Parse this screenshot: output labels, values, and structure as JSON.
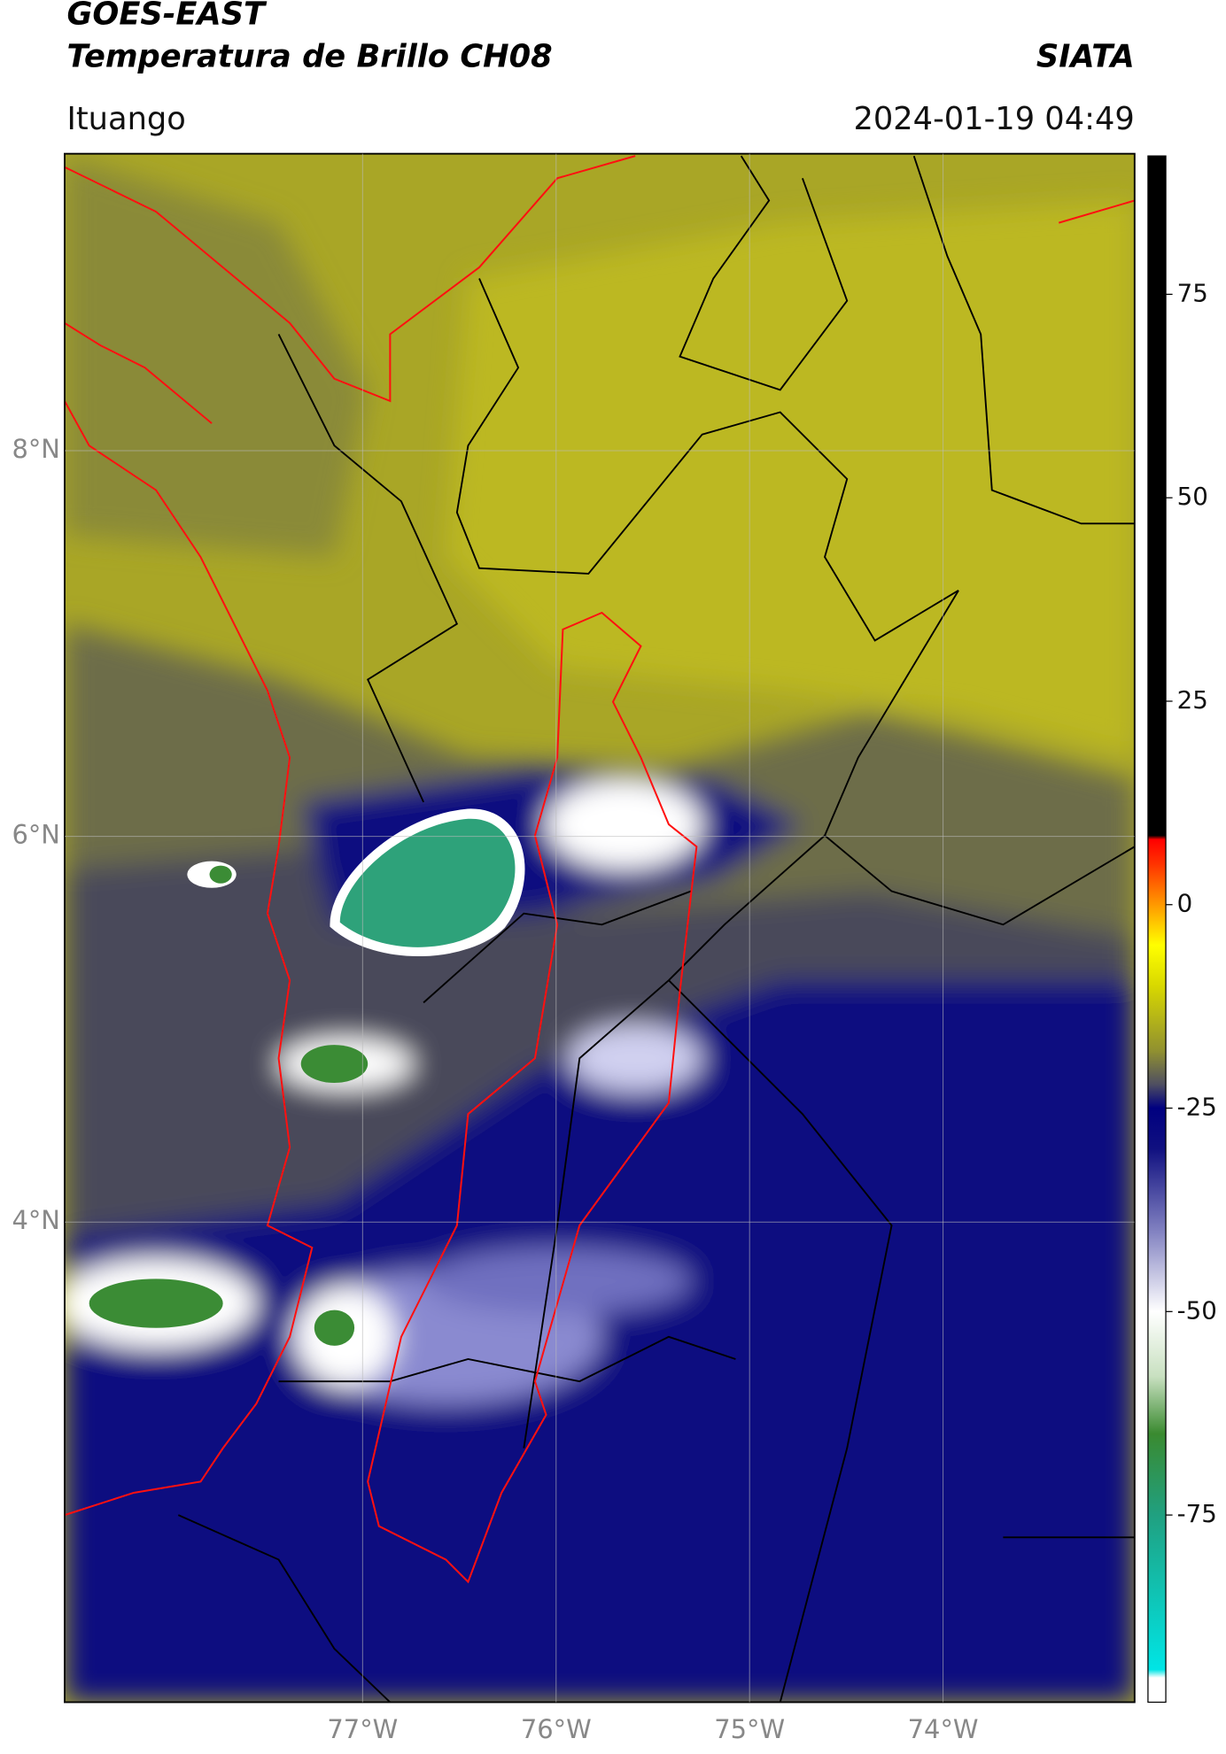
{
  "header": {
    "title": "GOES-EAST",
    "subtitle": "Temperatura de Brillo CH08",
    "source": "SIATA",
    "location": "Ituango",
    "datetime": "2024-01-19 04:49"
  },
  "map": {
    "xlim": [
      -78.54,
      -73.01
    ],
    "ylim": [
      1.51,
      9.54
    ],
    "xticks": [
      {
        "value": -77,
        "label": "77°W"
      },
      {
        "value": -76,
        "label": "76°W"
      },
      {
        "value": -75,
        "label": "75°W"
      },
      {
        "value": -74,
        "label": "74°W"
      }
    ],
    "yticks": [
      {
        "value": 8,
        "label": "8°N"
      },
      {
        "value": 6,
        "label": "6°N"
      },
      {
        "value": 4,
        "label": "4°N"
      }
    ],
    "grid": true
  },
  "colorbar": {
    "range": [
      -98,
      92
    ],
    "ticks": [
      75,
      50,
      25,
      0,
      -25,
      -50,
      -75
    ],
    "colors": [
      {
        "value": -98,
        "color": "#ffffff"
      },
      {
        "value": -95,
        "color": "#ffffff"
      },
      {
        "value": -94,
        "color": "#00e5e5"
      },
      {
        "value": -75,
        "color": "#20a080"
      },
      {
        "value": -65,
        "color": "#3a8a30"
      },
      {
        "value": -58,
        "color": "#c8e0c0"
      },
      {
        "value": -50,
        "color": "#ffffff"
      },
      {
        "value": -40,
        "color": "#8080c0"
      },
      {
        "value": -30,
        "color": "#101080"
      },
      {
        "value": -25,
        "color": "#000080"
      },
      {
        "value": -22,
        "color": "#505060"
      },
      {
        "value": -18,
        "color": "#909030"
      },
      {
        "value": -10,
        "color": "#d8d800"
      },
      {
        "value": -5,
        "color": "#ffff00"
      },
      {
        "value": 0,
        "color": "#ff9900"
      },
      {
        "value": 5,
        "color": "#ff3300"
      },
      {
        "value": 8,
        "color": "#ff0000"
      },
      {
        "value": 8.5,
        "color": "#000000"
      },
      {
        "value": 92,
        "color": "#000000"
      }
    ]
  }
}
